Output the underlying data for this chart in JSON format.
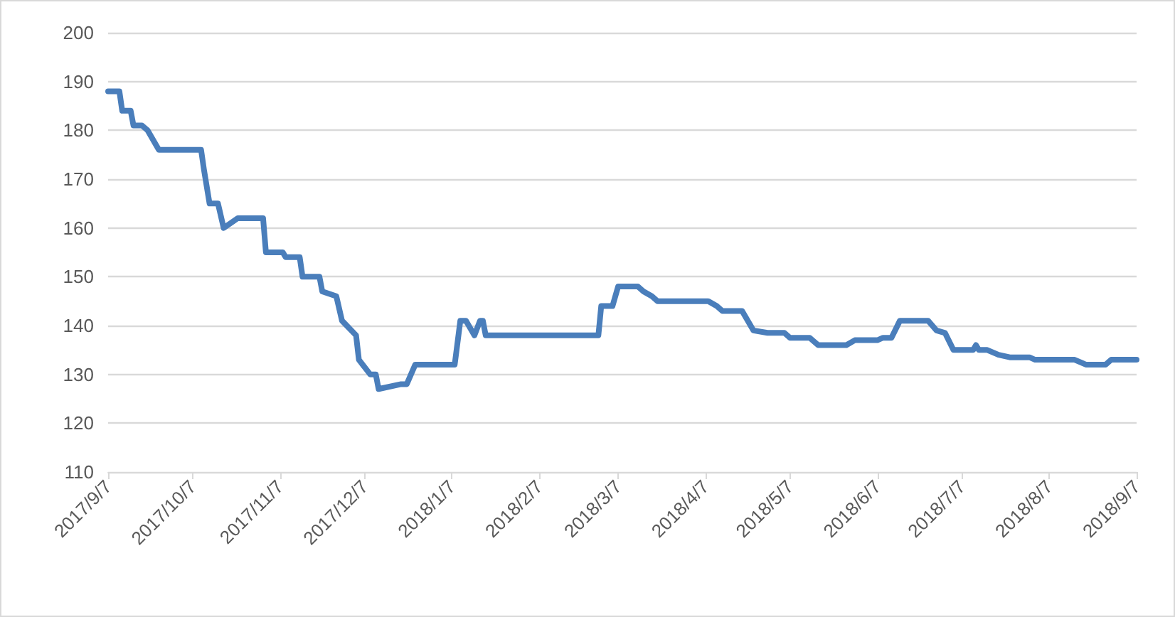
{
  "chart_data": {
    "type": "line",
    "x": [
      "2017-09-07",
      "2017-09-11",
      "2017-09-12",
      "2017-09-15",
      "2017-09-16",
      "2017-09-19",
      "2017-09-21",
      "2017-09-25",
      "2017-10-10",
      "2017-10-11",
      "2017-10-13",
      "2017-10-16",
      "2017-10-18",
      "2017-10-23",
      "2017-11-01",
      "2017-11-02",
      "2017-11-08",
      "2017-11-09",
      "2017-11-14",
      "2017-11-15",
      "2017-11-21",
      "2017-11-22",
      "2017-11-27",
      "2017-11-29",
      "2017-12-04",
      "2017-12-05",
      "2017-12-09",
      "2017-12-11",
      "2017-12-12",
      "2017-12-20",
      "2017-12-22",
      "2017-12-25",
      "2018-01-08",
      "2018-01-10",
      "2018-01-12",
      "2018-01-15",
      "2018-01-17",
      "2018-01-18",
      "2018-01-19",
      "2018-02-28",
      "2018-03-01",
      "2018-03-05",
      "2018-03-07",
      "2018-03-14",
      "2018-03-16",
      "2018-03-19",
      "2018-03-21",
      "2018-04-08",
      "2018-04-11",
      "2018-04-13",
      "2018-04-20",
      "2018-04-24",
      "2018-04-29",
      "2018-05-05",
      "2018-05-07",
      "2018-05-14",
      "2018-05-17",
      "2018-05-27",
      "2018-05-30",
      "2018-06-07",
      "2018-06-09",
      "2018-06-12",
      "2018-06-15",
      "2018-06-25",
      "2018-06-28",
      "2018-07-01",
      "2018-07-04",
      "2018-07-11",
      "2018-07-12",
      "2018-07-13",
      "2018-07-16",
      "2018-07-20",
      "2018-07-24",
      "2018-07-31",
      "2018-08-02",
      "2018-08-16",
      "2018-08-20",
      "2018-08-27",
      "2018-08-29",
      "2018-09-07"
    ],
    "values": [
      188,
      188,
      184,
      184,
      181,
      181,
      180,
      176,
      176,
      172,
      165,
      165,
      160,
      162,
      162,
      155,
      155,
      154,
      154,
      150,
      150,
      147,
      146,
      141,
      138,
      133,
      130,
      130,
      127,
      128,
      128,
      132,
      132,
      141,
      141,
      138,
      141,
      141,
      138,
      138,
      144,
      144,
      148,
      148,
      147,
      146,
      145,
      145,
      144,
      143,
      143,
      139,
      138.5,
      138.5,
      137.5,
      137.5,
      136,
      136,
      137,
      137,
      137.5,
      137.5,
      141,
      141,
      139,
      138.5,
      135,
      135,
      136,
      135,
      135,
      134,
      133.5,
      133.5,
      133,
      133,
      132,
      132,
      133,
      133
    ],
    "color": "#4a7ebb",
    "xlim": [
      "2017-09-07",
      "2018-09-07"
    ],
    "xticks": [
      {
        "value": "2017-09-07",
        "label": "2017/9/7"
      },
      {
        "value": "2017-10-07",
        "label": "2017/10/7"
      },
      {
        "value": "2017-11-07",
        "label": "2017/11/7"
      },
      {
        "value": "2017-12-07",
        "label": "2017/12/7"
      },
      {
        "value": "2018-01-07",
        "label": "2018/1/7"
      },
      {
        "value": "2018-02-07",
        "label": "2018/2/7"
      },
      {
        "value": "2018-03-07",
        "label": "2018/3/7"
      },
      {
        "value": "2018-04-07",
        "label": "2018/4/7"
      },
      {
        "value": "2018-05-07",
        "label": "2018/5/7"
      },
      {
        "value": "2018-06-07",
        "label": "2018/6/7"
      },
      {
        "value": "2018-07-07",
        "label": "2018/7/7"
      },
      {
        "value": "2018-08-07",
        "label": "2018/8/7"
      },
      {
        "value": "2018-09-07",
        "label": "2018/9/7"
      }
    ],
    "ylim": [
      110,
      200
    ],
    "yticks": [
      110,
      120,
      130,
      140,
      150,
      160,
      170,
      180,
      190,
      200
    ],
    "grid": "y",
    "marker": "none",
    "line_style": "solid"
  }
}
